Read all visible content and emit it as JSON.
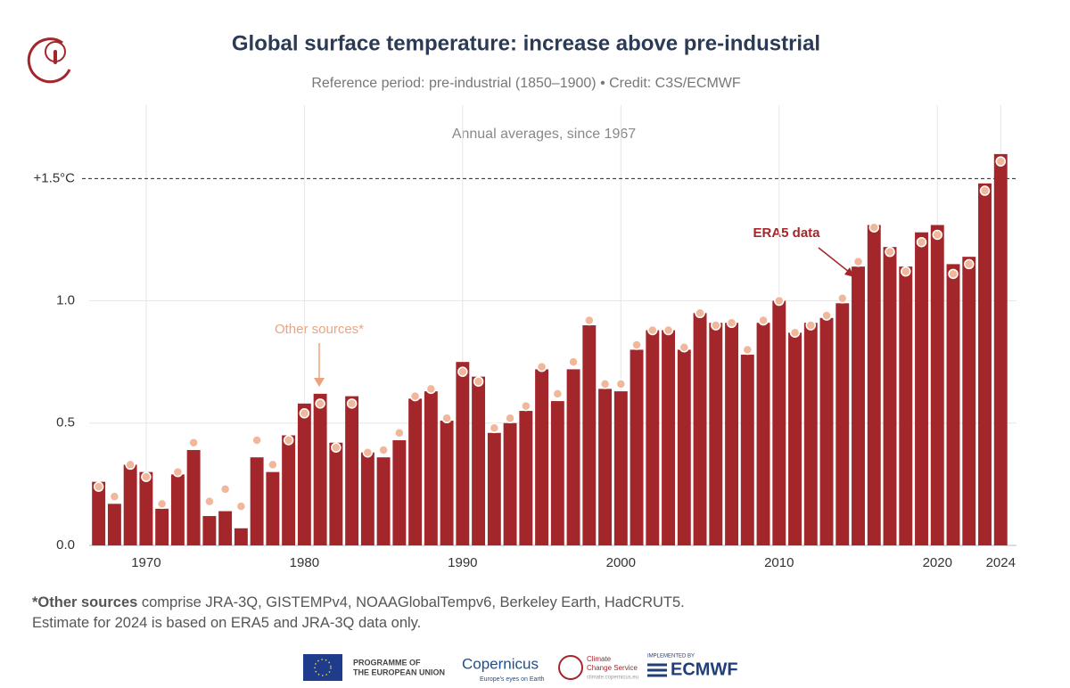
{
  "chart_data": {
    "type": "bar",
    "title": "Global surface temperature: increase above pre-industrial",
    "subtitle": "Reference period: pre-industrial (1850–1900) • Credit: C3S/ECMWF",
    "annotation": "Annual averages, since 1967",
    "x": [
      1967,
      1968,
      1969,
      1970,
      1971,
      1972,
      1973,
      1974,
      1975,
      1976,
      1977,
      1978,
      1979,
      1980,
      1981,
      1982,
      1983,
      1984,
      1985,
      1986,
      1987,
      1988,
      1989,
      1990,
      1991,
      1992,
      1993,
      1994,
      1995,
      1996,
      1997,
      1998,
      1999,
      2000,
      2001,
      2002,
      2003,
      2004,
      2005,
      2006,
      2007,
      2008,
      2009,
      2010,
      2011,
      2012,
      2013,
      2014,
      2015,
      2016,
      2017,
      2018,
      2019,
      2020,
      2021,
      2022,
      2023,
      2024
    ],
    "series": [
      {
        "name": "ERA5 data",
        "color": "#a3262a",
        "values": [
          0.26,
          0.17,
          0.33,
          0.3,
          0.15,
          0.29,
          0.39,
          0.12,
          0.14,
          0.07,
          0.36,
          0.3,
          0.45,
          0.58,
          0.62,
          0.42,
          0.61,
          0.38,
          0.36,
          0.43,
          0.6,
          0.63,
          0.51,
          0.75,
          0.69,
          0.46,
          0.5,
          0.55,
          0.72,
          0.59,
          0.72,
          0.9,
          0.64,
          0.63,
          0.8,
          0.88,
          0.88,
          0.8,
          0.95,
          0.91,
          0.91,
          0.78,
          0.91,
          1.0,
          0.87,
          0.91,
          0.93,
          0.99,
          1.14,
          1.31,
          1.22,
          1.14,
          1.28,
          1.31,
          1.15,
          1.18,
          1.48,
          1.6
        ]
      },
      {
        "name": "Other sources*",
        "color": "#f0b79a",
        "values": [
          0.24,
          0.2,
          0.33,
          0.28,
          0.17,
          0.3,
          0.42,
          0.18,
          0.23,
          0.16,
          0.43,
          0.33,
          0.43,
          0.54,
          0.58,
          0.4,
          0.58,
          0.38,
          0.39,
          0.46,
          0.61,
          0.64,
          0.52,
          0.71,
          0.67,
          0.48,
          0.52,
          0.57,
          0.73,
          0.62,
          0.75,
          0.92,
          0.66,
          0.66,
          0.82,
          0.88,
          0.88,
          0.81,
          0.95,
          0.9,
          0.91,
          0.8,
          0.92,
          1.0,
          0.87,
          0.9,
          0.94,
          1.01,
          1.16,
          1.3,
          1.2,
          1.12,
          1.24,
          1.27,
          1.11,
          1.15,
          1.45,
          1.57
        ]
      }
    ],
    "xlim": [
      1966.4,
      2025
    ],
    "xticks": [
      1970,
      1980,
      1990,
      2000,
      2010,
      2020,
      2024
    ],
    "ylim": [
      0,
      1.8
    ],
    "yticks": [
      {
        "value": 0,
        "label": "0.0"
      },
      0.5,
      {
        "value": 1,
        "label": "1.0"
      },
      {
        "value": 1.5,
        "label": "+1.5°C"
      }
    ],
    "grid": true
  },
  "footnote": {
    "bold": "*Other sources",
    "text": " comprise JRA-3Q, GISTEMPv4, NOAAGlobalTempv6, Berkeley Earth, HadCRUT5.",
    "line2": "Estimate for 2024 is based on ERA5 and JRA-3Q data only."
  },
  "footer": {
    "eu": [
      "PROGRAMME OF",
      "THE EUROPEAN UNION"
    ],
    "copernicus": "Copernicus",
    "copernicus_tag": "Europe's eyes on Earth",
    "c3s": [
      "Climate",
      "Change Service",
      "climate.copernicus.eu"
    ],
    "implemented": "IMPLEMENTED BY",
    "ecmwf": "ECMWF"
  }
}
